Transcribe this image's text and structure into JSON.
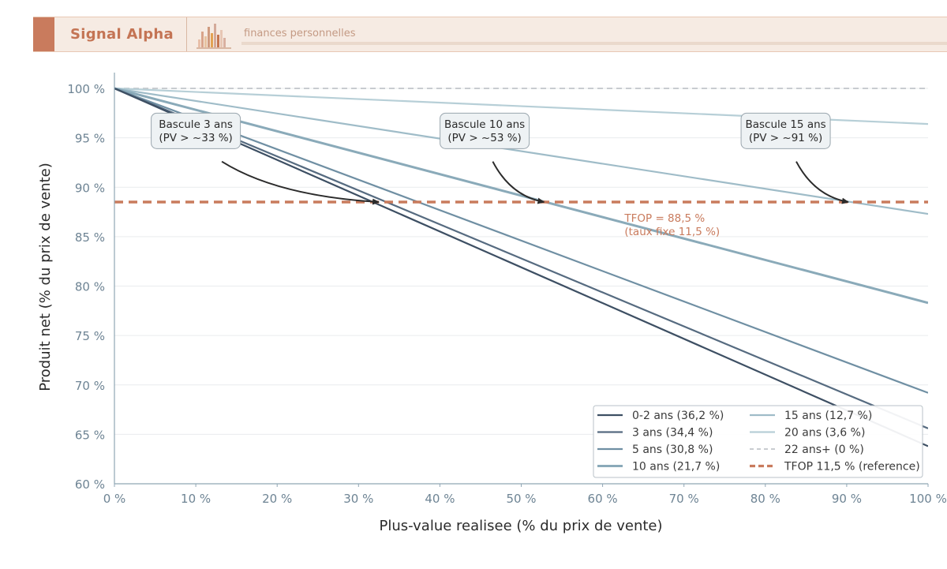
{
  "header": {
    "brand": "Signal Alpha",
    "tagline": "finances personnelles"
  },
  "colors": {
    "accent": "#c97b5d",
    "reference_line": "#c97b5d",
    "axis_text": "#6e8494"
  },
  "chart_data": {
    "type": "line",
    "xlabel": "Plus-value realisee (% du prix de vente)",
    "ylabel": "Produit net (% du prix de vente)",
    "xlim": [
      0,
      100
    ],
    "ylim": [
      60,
      102
    ],
    "x_ticks": [
      0,
      10,
      20,
      30,
      40,
      50,
      60,
      70,
      80,
      90,
      100
    ],
    "x_tick_labels": [
      "0 %",
      "10 %",
      "20 %",
      "30 %",
      "40 %",
      "50 %",
      "60 %",
      "70 %",
      "80 %",
      "90 %",
      "100 %"
    ],
    "y_ticks": [
      60,
      65,
      70,
      75,
      80,
      85,
      90,
      95,
      100
    ],
    "y_tick_labels": [
      "60 %",
      "65 %",
      "70 %",
      "75 %",
      "80 %",
      "85 %",
      "90 %",
      "95 %",
      "100 %"
    ],
    "grid": "horizontal",
    "legend_position": "bottom-right",
    "series": [
      {
        "name": "0-2 ans (36,2 %)",
        "x": [
          0,
          100
        ],
        "y": [
          100,
          63.8
        ],
        "color": "#3d4f63",
        "width": 2.2,
        "dash": ""
      },
      {
        "name": "3 ans (34,4 %)",
        "x": [
          0,
          100
        ],
        "y": [
          100,
          65.6
        ],
        "color": "#566b80",
        "width": 2.2,
        "dash": ""
      },
      {
        "name": "5 ans (30,8 %)",
        "x": [
          0,
          100
        ],
        "y": [
          100,
          69.2
        ],
        "color": "#6f8fa3",
        "width": 2.2,
        "dash": ""
      },
      {
        "name": "10 ans (21,7 %)",
        "x": [
          0,
          100
        ],
        "y": [
          100,
          78.3
        ],
        "color": "#8aaab9",
        "width": 3,
        "dash": ""
      },
      {
        "name": "15 ans (12,7 %)",
        "x": [
          0,
          100
        ],
        "y": [
          100,
          87.3
        ],
        "color": "#9fbcc8",
        "width": 2.2,
        "dash": ""
      },
      {
        "name": "20 ans (3,6 %)",
        "x": [
          0,
          100
        ],
        "y": [
          100,
          96.4
        ],
        "color": "#b7cfd7",
        "width": 2.2,
        "dash": ""
      },
      {
        "name": "22 ans+ (0 %)",
        "x": [
          0,
          100
        ],
        "y": [
          100,
          100
        ],
        "color": "#c8ccd0",
        "width": 2,
        "dash": "7,5"
      },
      {
        "name": "TFOP 11,5 % (reference)",
        "x": [
          0,
          100
        ],
        "y": [
          88.5,
          88.5
        ],
        "color": "#c97b5d",
        "width": 3.5,
        "dash": "11,7"
      }
    ],
    "annotations": [
      {
        "lines": [
          "Bascule 3 ans",
          "(PV > ~33 %)"
        ],
        "box_x": 10,
        "box_y": 95.7,
        "target_x": 32.5,
        "target_y": 88.5,
        "start_x": 13.2,
        "start_y": 92.6
      },
      {
        "lines": [
          "Bascule 10 ans",
          "(PV > ~53 %)"
        ],
        "box_x": 45.5,
        "box_y": 95.7,
        "target_x": 52.8,
        "target_y": 88.5,
        "start_x": 46.5,
        "start_y": 92.6
      },
      {
        "lines": [
          "Bascule 15 ans",
          "(PV > ~91 %)"
        ],
        "box_x": 82.5,
        "box_y": 95.7,
        "target_x": 90.2,
        "target_y": 88.5,
        "start_x": 83.8,
        "start_y": 92.6
      }
    ],
    "reference_label": {
      "lines": [
        "TFOP = 88,5 %",
        "(taux fixe 11,5 %)"
      ],
      "x": 62.5,
      "y": 86.5
    }
  }
}
